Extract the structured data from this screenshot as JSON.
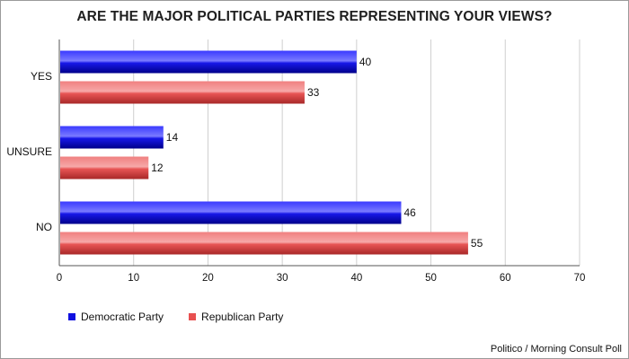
{
  "chart_data": {
    "type": "bar",
    "orientation": "horizontal",
    "title": "ARE THE MAJOR POLITICAL PARTIES REPRESENTING YOUR VIEWS?",
    "categories": [
      "YES",
      "UNSURE",
      "NO"
    ],
    "series": [
      {
        "name": "Democratic Party",
        "values": [
          40,
          14,
          46
        ],
        "color": "#1010e0"
      },
      {
        "name": "Republican Party",
        "values": [
          33,
          12,
          55
        ],
        "color": "#e85050"
      }
    ],
    "xlim": [
      0,
      70
    ],
    "ticks": [
      0,
      10,
      20,
      30,
      40,
      50,
      60,
      70
    ],
    "xlabel": "",
    "ylabel": "",
    "grid": true,
    "legend": "bottom-left",
    "source": "Politico / Morning Consult Poll"
  }
}
